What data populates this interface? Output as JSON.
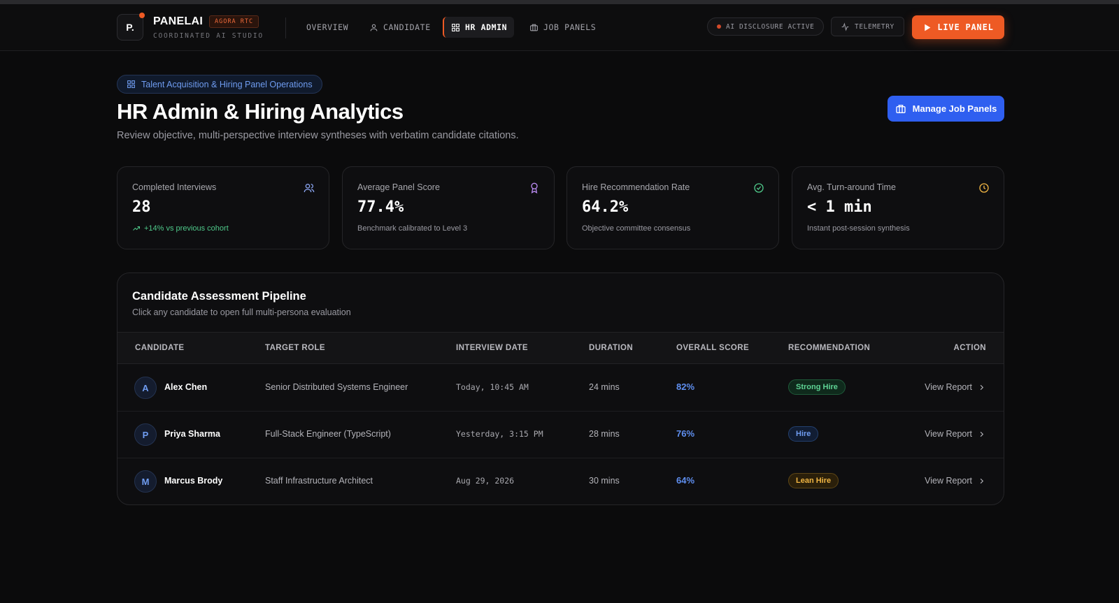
{
  "header": {
    "logo_text": "P.",
    "brand": "PANELAI",
    "brand_tag": "AGORA RTC",
    "brand_sub": "COORDINATED AI STUDIO",
    "nav": [
      {
        "label": "OVERVIEW",
        "icon": null,
        "active": false
      },
      {
        "label": "CANDIDATE",
        "icon": "user-icon",
        "active": false
      },
      {
        "label": "HR ADMIN",
        "icon": "grid-icon",
        "active": true
      },
      {
        "label": "JOB PANELS",
        "icon": "briefcase-icon",
        "active": false
      }
    ],
    "disclosure_label": "AI DISCLOSURE ACTIVE",
    "telemetry_label": "TELEMETRY",
    "live_label": "LIVE PANEL",
    "accent_color": "#ee5a24"
  },
  "page": {
    "breadcrumb": "Talent Acquisition & Hiring Panel Operations",
    "title": "HR Admin & Hiring Analytics",
    "subtitle": "Review objective, multi-perspective interview syntheses with verbatim candidate citations.",
    "manage_button": "Manage Job Panels"
  },
  "stats": [
    {
      "label": "Completed Interviews",
      "value": "28",
      "foot": "+14% vs previous cohort",
      "icon": "users-icon",
      "icon_color": "#8aa4f0"
    },
    {
      "label": "Average Panel Score",
      "value": "77.4%",
      "foot": "Benchmark calibrated to Level 3",
      "icon": "award-icon",
      "icon_color": "#b98af0"
    },
    {
      "label": "Hire Recommendation Rate",
      "value": "64.2%",
      "foot": "Objective committee consensus",
      "icon": "check-circle-icon",
      "icon_color": "#4fc98a"
    },
    {
      "label": "Avg. Turn-around Time",
      "value": "< 1 min",
      "foot": "Instant post-session synthesis",
      "icon": "clock-icon",
      "icon_color": "#f0b543"
    }
  ],
  "pipeline": {
    "title": "Candidate Assessment Pipeline",
    "subtitle": "Click any candidate to open full multi-persona evaluation",
    "columns": [
      "CANDIDATE",
      "TARGET ROLE",
      "INTERVIEW DATE",
      "DURATION",
      "OVERALL SCORE",
      "RECOMMENDATION",
      "ACTION"
    ],
    "rows": [
      {
        "initial": "A",
        "name": "Alex Chen",
        "role": "Senior Distributed Systems Engineer",
        "date": "Today, 10:45 AM",
        "duration": "24 mins",
        "score": "82%",
        "recommendation": "Strong Hire",
        "rec_type": "strong",
        "action": "View Report"
      },
      {
        "initial": "P",
        "name": "Priya Sharma",
        "role": "Full-Stack Engineer (TypeScript)",
        "date": "Yesterday, 3:15 PM",
        "duration": "28 mins",
        "score": "76%",
        "recommendation": "Hire",
        "rec_type": "hire",
        "action": "View Report"
      },
      {
        "initial": "M",
        "name": "Marcus Brody",
        "role": "Staff Infrastructure Architect",
        "date": "Aug 29, 2026",
        "duration": "30 mins",
        "score": "64%",
        "recommendation": "Lean Hire",
        "rec_type": "lean",
        "action": "View Report"
      }
    ]
  }
}
